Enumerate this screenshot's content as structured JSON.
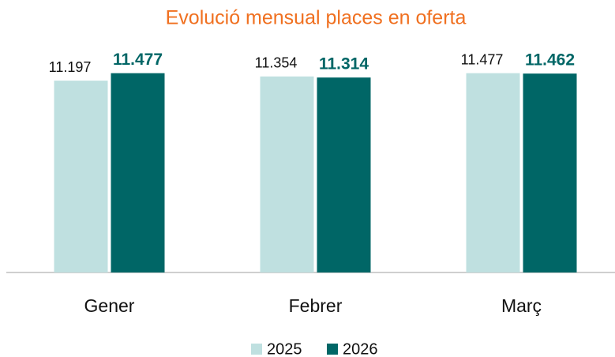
{
  "chart_data": {
    "type": "bar",
    "title": "Evolució mensual places en oferta",
    "categories": [
      "Gener",
      "Febrer",
      "Març"
    ],
    "series": [
      {
        "name": "2025",
        "color": "#bfe0e0",
        "values": [
          11197,
          11354,
          11477
        ],
        "value_labels": [
          "11.197",
          "11.354",
          "11.477"
        ]
      },
      {
        "name": "2026",
        "color": "#006666",
        "values": [
          11477,
          11314,
          11462
        ],
        "value_labels": [
          "11.477",
          "11.314",
          "11.462"
        ]
      }
    ],
    "ylim": [
      4000,
      12000
    ],
    "legend": "bottom"
  }
}
